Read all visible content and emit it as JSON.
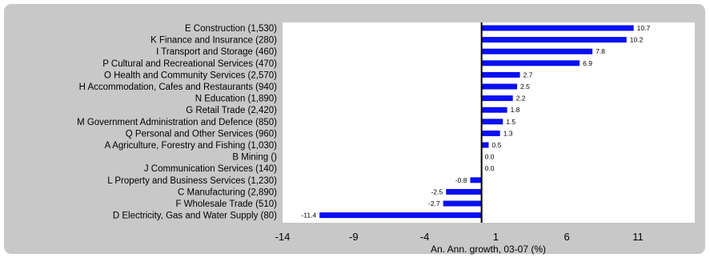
{
  "chart_data": {
    "type": "bar",
    "orientation": "horizontal",
    "categories": [
      "E Construction (1,530)",
      "K Finance and Insurance (280)",
      "I Transport and Storage (460)",
      "P Cultural and Recreational Services (470)",
      "O Health and Community Services (2,570)",
      "H Accommodation, Cafes and Restaurants (940)",
      "N Education (1,890)",
      "G Retail Trade (2,420)",
      "M Government Administration and Defence (850)",
      "Q Personal and Other Services (960)",
      "A Agriculture, Forestry and Fishing (1,030)",
      "B Mining ()",
      "J Communication Services (140)",
      "L Property and Business Services (1,230)",
      "C Manufacturing (2,890)",
      "F Wholesale Trade (510)",
      "D Electricity, Gas and Water Supply (80)"
    ],
    "values": [
      10.7,
      10.2,
      7.8,
      6.9,
      2.7,
      2.5,
      2.2,
      1.8,
      1.5,
      1.3,
      0.5,
      0.0,
      0.0,
      -0.8,
      -2.5,
      -2.7,
      -11.4
    ],
    "value_labels": [
      "10.7",
      "10.2",
      "7.8",
      "6.9",
      "2.7",
      "2.5",
      "2.2",
      "1.8",
      "1.5",
      "1.3",
      "0.5",
      "0.0",
      "0.0",
      "-0.8",
      "-2.5",
      "-2.7",
      "-11.4"
    ],
    "xlabel": "An. Ann. growth, 03-07 (%)",
    "xlim": [
      -14,
      15
    ],
    "xticks": [
      -14,
      -9,
      -4,
      1,
      6,
      11
    ],
    "xtick_labels": [
      "-14",
      "-9",
      "-4",
      "1",
      "6",
      "11"
    ],
    "grid": false,
    "legend": "none",
    "colors": {
      "bar": "#0a0ff0",
      "frame_bg": "#c8c8c8",
      "plot_bg": "#ffffff",
      "axis": "#000000",
      "text": "#000000"
    }
  }
}
